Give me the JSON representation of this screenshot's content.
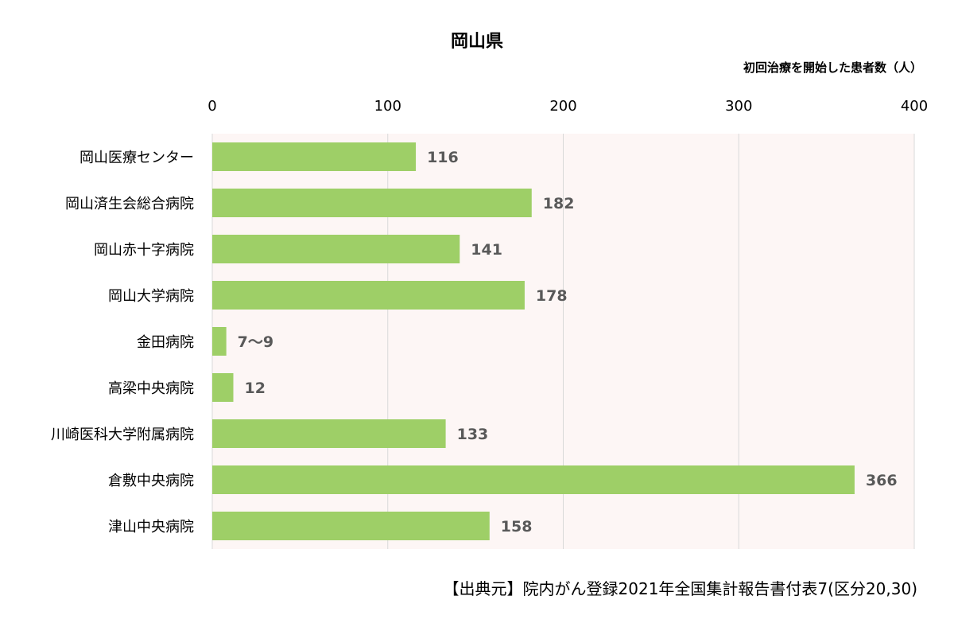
{
  "chart_data": {
    "type": "bar",
    "orientation": "horizontal",
    "title": "岡山県",
    "unit_label": "初回治療を開始した患者数（人）",
    "xlim": [
      0,
      400
    ],
    "xticks": [
      0,
      100,
      200,
      300,
      400
    ],
    "x_axis_position": "top",
    "grid": true,
    "categories": [
      "岡山医療センター",
      "岡山済生会総合病院",
      "岡山赤十字病院",
      "岡山大学病院",
      "金田病院",
      "高梁中央病院",
      "川崎医科大学附属病院",
      "倉敷中央病院",
      "津山中央病院"
    ],
    "values": [
      116,
      182,
      141,
      178,
      8,
      12,
      133,
      366,
      158
    ],
    "data_labels": [
      "116",
      "182",
      "141",
      "178",
      "7～9",
      "12",
      "133",
      "366",
      "158"
    ],
    "colors": {
      "bar": "#9ecf67",
      "plot_background": "#fdf6f5",
      "grid": "#d9d9d9",
      "data_label": "#595959"
    }
  },
  "source": "【出典元】院内がん登録2021年全国集計報告書付表7(区分20,30)"
}
